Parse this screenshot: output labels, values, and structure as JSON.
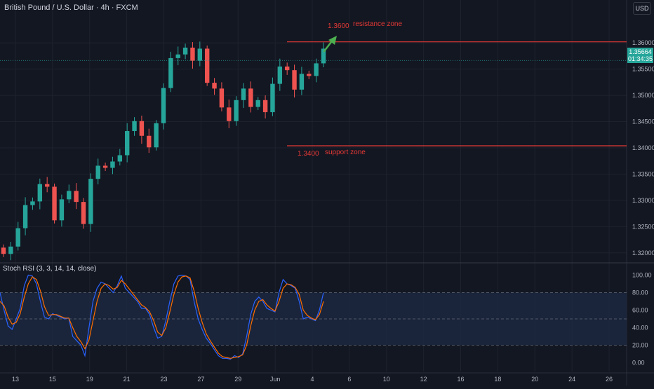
{
  "header": {
    "title": "British Pound / U.S. Dollar · 4h · FXCM",
    "currency": "USD"
  },
  "price_tag": {
    "price": "1.35664",
    "countdown": "01:34:35"
  },
  "colors": {
    "background": "#131722",
    "bull": "#26a69a",
    "bear": "#ef5350",
    "zone_line": "#e53935",
    "zone_text": "#e53935",
    "arrow": "#4caf50",
    "rsi_k": "#2962ff",
    "rsi_d": "#ff6d00",
    "rsi_band": "#1c2840"
  },
  "annotations": {
    "resistance_value": "1.3600",
    "resistance_label": "resistance zone",
    "support_value": "1.3400",
    "support_label": "support zone"
  },
  "indicator": {
    "title": "Stoch RSI (3, 3, 14, 14, close)"
  },
  "chart_data": [
    {
      "type": "candlestick",
      "instrument": "GBPUSD",
      "timeframe": "4h",
      "y_ticks": [
        1.32,
        1.325,
        1.33,
        1.335,
        1.34,
        1.345,
        1.35,
        1.355,
        1.36
      ],
      "y_tick_labels": [
        "1.32000",
        "1.32500",
        "1.33000",
        "1.33500",
        "1.34000",
        "1.34500",
        "1.35000",
        "1.35500",
        "1.36000"
      ],
      "ylim": [
        1.3185,
        1.3655
      ],
      "x_labels": [
        "13",
        "15",
        "19",
        "21",
        "23",
        "27",
        "29",
        "Jun",
        "4",
        "6",
        "10",
        "12",
        "16",
        "18",
        "20",
        "24",
        "26"
      ],
      "horizontal_lines": [
        {
          "label": "resistance zone",
          "value": 1.3602
        },
        {
          "label": "support zone",
          "value": 1.3404
        }
      ],
      "close_path": [
        1.3198,
        1.3212,
        1.3247,
        1.3291,
        1.3298,
        1.3331,
        1.3326,
        1.3262,
        1.3302,
        1.3318,
        1.3297,
        1.3255,
        1.3341,
        1.3366,
        1.3362,
        1.3374,
        1.3386,
        1.3432,
        1.3451,
        1.3423,
        1.3401,
        1.3447,
        1.3514,
        1.3571,
        1.3578,
        1.3591,
        1.3566,
        1.3589,
        1.3524,
        1.3513,
        1.3477,
        1.3451,
        1.3491,
        1.3513,
        1.3478,
        1.3491,
        1.3468,
        1.3522,
        1.3555,
        1.3548,
        1.3511,
        1.3541,
        1.3537,
        1.3561,
        1.3589
      ],
      "last_price": 1.35664
    },
    {
      "type": "line",
      "title": "Stoch RSI (3, 3, 14, 14, close)",
      "ylim": [
        -10,
        110
      ],
      "y_ticks": [
        0,
        20,
        40,
        60,
        80,
        100
      ],
      "y_tick_labels": [
        "0.00",
        "20.00",
        "40.00",
        "60.00",
        "80.00",
        "100.00"
      ],
      "band": [
        20,
        80
      ],
      "series": [
        {
          "key": "K",
          "values": [
            80,
            60,
            42,
            38,
            50,
            62,
            88,
            100,
            99,
            90,
            70,
            52,
            50,
            56,
            54,
            52,
            50,
            51,
            30,
            25,
            20,
            8,
            40,
            70,
            85,
            92,
            90,
            85,
            80,
            88,
            99,
            85,
            80,
            75,
            70,
            62,
            62,
            55,
            40,
            28,
            30,
            48,
            70,
            90,
            99,
            100,
            99,
            95,
            70,
            50,
            38,
            28,
            22,
            15,
            8,
            5,
            5,
            4,
            8,
            6,
            10,
            30,
            55,
            70,
            75,
            70,
            62,
            60,
            58,
            80,
            95,
            90,
            88,
            85,
            70,
            50,
            52,
            50,
            48,
            60,
            80
          ]
        },
        {
          "key": "D",
          "values": [
            70,
            65,
            52,
            44,
            46,
            56,
            75,
            90,
            98,
            95,
            82,
            64,
            54,
            55,
            55,
            53,
            51,
            51,
            40,
            30,
            24,
            16,
            26,
            48,
            70,
            85,
            90,
            88,
            84,
            86,
            94,
            90,
            84,
            78,
            72,
            66,
            63,
            58,
            48,
            35,
            31,
            40,
            58,
            78,
            92,
            98,
            99,
            97,
            82,
            62,
            46,
            33,
            25,
            18,
            11,
            7,
            6,
            5,
            6,
            7,
            9,
            20,
            42,
            60,
            70,
            72,
            66,
            62,
            59,
            70,
            85,
            90,
            89,
            86,
            78,
            60,
            54,
            51,
            49,
            55,
            70
          ]
        }
      ]
    }
  ]
}
